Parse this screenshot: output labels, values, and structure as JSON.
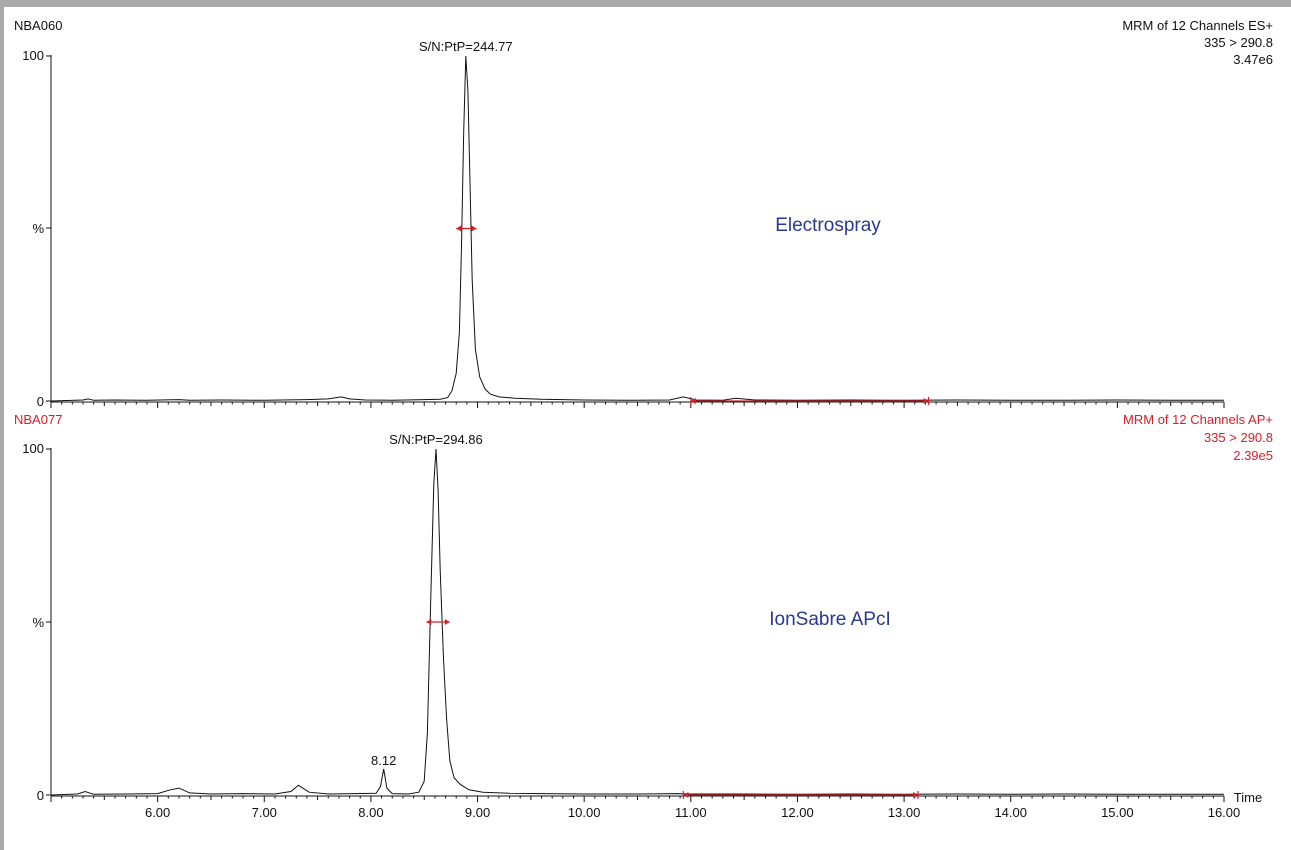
{
  "chart_data": [
    {
      "type": "line",
      "sample_label": "NBA060",
      "header_lines": [
        "MRM of 12 Channels ES+",
        "335 > 290.8",
        "3.47e6"
      ],
      "header_color": "#111111",
      "annotation": "Electrospray",
      "annotation_color": "#2b3990",
      "peak_label": "S/N:PtP=244.77",
      "x_range": [
        5.0,
        16.0
      ],
      "y_range": [
        0,
        100
      ],
      "y_tick_labels": [
        "100",
        "%",
        "0"
      ],
      "peak_width_marker": {
        "from": 8.8,
        "to": 8.99,
        "y": 50
      },
      "noise_range_marker": {
        "from": 11.0,
        "to": 13.23
      },
      "series": [
        {
          "x": [
            5.0,
            5.3,
            5.35,
            5.4,
            5.6,
            5.9,
            6.2,
            6.3,
            6.6,
            7.0,
            7.4,
            7.6,
            7.72,
            7.8,
            7.95,
            8.2,
            8.5,
            8.65,
            8.72,
            8.76,
            8.8,
            8.83,
            8.85,
            8.87,
            8.89,
            8.91,
            8.93,
            8.95,
            8.98,
            9.02,
            9.07,
            9.12,
            9.2,
            9.35,
            9.6,
            10.0,
            10.4,
            10.8,
            10.93,
            11.05,
            11.3,
            11.42,
            11.6,
            12.0,
            12.5,
            13.0,
            13.5,
            14.0,
            14.5,
            15.0,
            15.5,
            16.0
          ],
          "y": [
            0,
            0.3,
            0.6,
            0.2,
            0.3,
            0.2,
            0.4,
            0.2,
            0.3,
            0.2,
            0.4,
            0.6,
            1.2,
            0.6,
            0.3,
            0.2,
            0.4,
            0.5,
            1.0,
            3,
            8,
            20,
            45,
            78,
            100,
            90,
            62,
            35,
            15,
            7,
            3.5,
            2,
            1.2,
            0.8,
            0.5,
            0.3,
            0.2,
            0.3,
            1.2,
            0.3,
            0.2,
            0.8,
            0.3,
            0.2,
            0.3,
            0.2,
            0.3,
            0.2,
            0.2,
            0.3,
            0.2,
            0.2
          ]
        }
      ]
    },
    {
      "type": "line",
      "sample_label": "NBA077",
      "header_lines": [
        "MRM of 12 Channels AP+",
        "335 > 290.8",
        "2.39e5"
      ],
      "header_color": "#d4202a",
      "annotation": "IonSabre APcI",
      "annotation_color": "#2b3990",
      "peak_label": "S/N:PtP=294.86",
      "peak_labels": [
        {
          "x": 8.12,
          "y": 7.5,
          "text": "8.12"
        }
      ],
      "x_range": [
        5.0,
        16.0
      ],
      "y_range": [
        0,
        100
      ],
      "y_tick_labels": [
        "100",
        "%",
        "0"
      ],
      "x_ticks": [
        6.0,
        7.0,
        8.0,
        9.0,
        10.0,
        11.0,
        12.0,
        13.0,
        14.0,
        15.0,
        16.0
      ],
      "x_tick_labels": [
        "6.00",
        "7.00",
        "8.00",
        "9.00",
        "10.00",
        "11.00",
        "12.00",
        "13.00",
        "14.00",
        "15.00",
        "16.00"
      ],
      "xlabel": "Time",
      "peak_width_marker": {
        "from": 8.52,
        "to": 8.74,
        "y": 50
      },
      "noise_range_marker": {
        "from": 10.93,
        "to": 13.13
      },
      "series": [
        {
          "x": [
            5.0,
            5.25,
            5.32,
            5.4,
            5.7,
            6.0,
            6.12,
            6.2,
            6.3,
            6.5,
            6.8,
            7.1,
            7.25,
            7.32,
            7.42,
            7.6,
            7.85,
            8.05,
            8.09,
            8.12,
            8.15,
            8.2,
            8.35,
            8.45,
            8.5,
            8.53,
            8.56,
            8.59,
            8.61,
            8.63,
            8.65,
            8.68,
            8.71,
            8.74,
            8.78,
            8.84,
            8.92,
            9.05,
            9.3,
            9.6,
            10.0,
            10.5,
            10.88,
            11.0,
            11.5,
            12.0,
            12.5,
            13.0,
            13.5,
            14.0,
            14.5,
            15.0,
            15.5,
            16.0
          ],
          "y": [
            0,
            0.3,
            1.0,
            0.2,
            0.3,
            0.4,
            1.5,
            2.0,
            0.6,
            0.3,
            0.4,
            0.3,
            1.0,
            2.8,
            0.8,
            0.3,
            0.4,
            0.5,
            2.5,
            7.5,
            2,
            0.4,
            0.3,
            0.8,
            4,
            18,
            55,
            90,
            100,
            88,
            65,
            40,
            22,
            10,
            5,
            3,
            1.5,
            0.8,
            0.5,
            0.4,
            0.3,
            0.3,
            0.4,
            0.3,
            0.3,
            0.2,
            0.3,
            0.2,
            0.3,
            0.2,
            0.3,
            0.2,
            0.2,
            0.2
          ]
        }
      ]
    }
  ],
  "colors": {
    "trace": "#111111",
    "marker": "#d4202a",
    "axis": "#111111",
    "frame": "#a9a9a9"
  }
}
